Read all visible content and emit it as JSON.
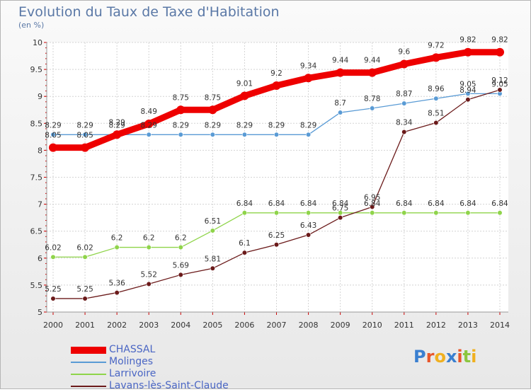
{
  "header": {
    "title": "Evolution du Taux de Taxe d'Habitation",
    "subtitle": "(en %)"
  },
  "logo": {
    "text": "Proxiti"
  },
  "chart_data": {
    "type": "line",
    "title": "Evolution du Taux de Taxe d'Habitation",
    "subtitle": "(en %)",
    "x": [
      "2000",
      "2001",
      "2002",
      "2003",
      "2004",
      "2005",
      "2006",
      "2007",
      "2008",
      "2009",
      "2010",
      "2011",
      "2012",
      "2013",
      "2014"
    ],
    "ylim": [
      5,
      10
    ],
    "yticks": [
      "5",
      "5.5",
      "6",
      "6.5",
      "7",
      "7.5",
      "8",
      "8.5",
      "9",
      "9.5",
      "10"
    ],
    "grid": true,
    "legend_position": "bottom-left",
    "series": [
      {
        "name": "CHASSAL",
        "color": "#ee0000",
        "values": [
          8.05,
          8.05,
          8.29,
          8.49,
          8.75,
          8.75,
          9.01,
          9.2,
          9.34,
          9.44,
          9.44,
          9.6,
          9.72,
          9.82,
          9.82
        ],
        "labels": [
          "8.05",
          "8.05",
          "8.29",
          "8.49",
          "8.75",
          "8.75",
          "9.01",
          "9.2",
          "9.34",
          "9.44",
          "9.44",
          "9.6",
          "9.72",
          "9.82",
          "9.82"
        ]
      },
      {
        "name": "Molinges",
        "color": "#5a9bd5",
        "values": [
          8.29,
          8.29,
          8.29,
          8.29,
          8.29,
          8.29,
          8.29,
          8.29,
          8.29,
          8.7,
          8.78,
          8.87,
          8.96,
          9.05,
          9.05
        ],
        "labels": [
          "8.29",
          "8.29",
          "8.29",
          "8.29",
          "8.29",
          "8.29",
          "8.29",
          "8.29",
          "8.29",
          "8.7",
          "8.78",
          "8.87",
          "8.96",
          "9.05",
          "9.05"
        ]
      },
      {
        "name": "Larrivoire",
        "color": "#8fd44a",
        "values": [
          6.02,
          6.02,
          6.2,
          6.2,
          6.2,
          6.51,
          6.84,
          6.84,
          6.84,
          6.84,
          6.84,
          6.84,
          6.84,
          6.84,
          6.84
        ],
        "labels": [
          "6.02",
          "6.02",
          "6.2",
          "6.2",
          "6.2",
          "6.51",
          "6.84",
          "6.84",
          "6.84",
          "6.84",
          "6.84",
          "6.84",
          "6.84",
          "6.84",
          "6.84"
        ]
      },
      {
        "name": "Lavans-lès-Saint-Claude",
        "color": "#6b1a1a",
        "values": [
          5.25,
          5.25,
          5.36,
          5.52,
          5.69,
          5.81,
          6.1,
          6.25,
          6.43,
          6.75,
          6.95,
          8.34,
          8.51,
          8.94,
          9.12
        ],
        "labels": [
          "5.25",
          "5.25",
          "5.36",
          "5.52",
          "5.69",
          "5.81",
          "6.1",
          "6.25",
          "6.43",
          "6.75",
          "6.95",
          "8.34",
          "8.51",
          "8.94",
          "9.12"
        ]
      }
    ]
  }
}
